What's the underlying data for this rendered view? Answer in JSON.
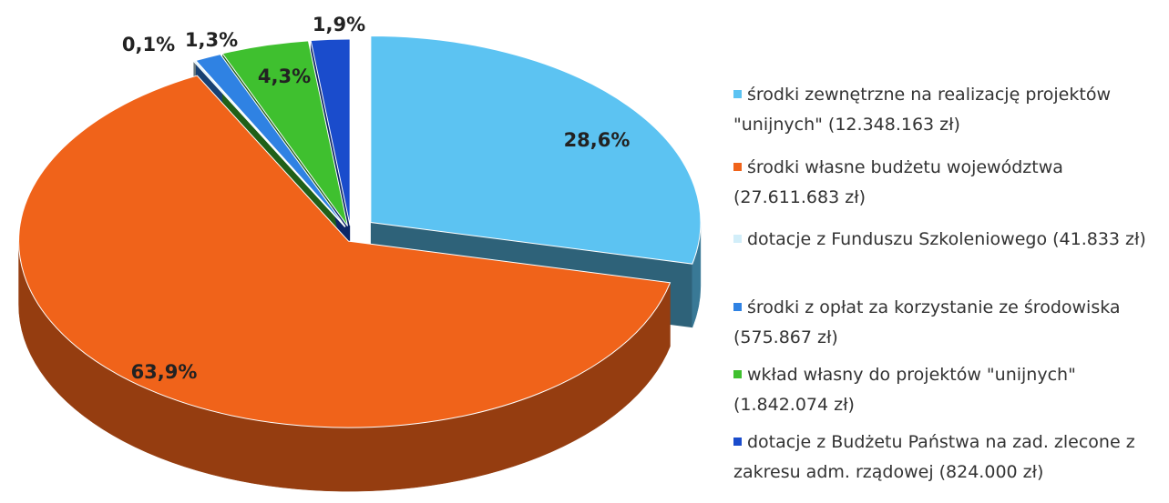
{
  "chart_data": {
    "type": "pie",
    "categories": [
      "środki zewnętrzne na realizację projektów \"unijnych\" (12.348.163 zł)",
      "środki własne budżetu województwa (27.611.683 zł)",
      "dotacje z Funduszu Szkoleniowego (41.833 zł)",
      "środki z opłat za korzystanie ze środowiska (575.867 zł)",
      "wkład własny do projektów \"unijnych\" (1.842.074 zł)",
      "dotacje z Budżetu Państwa na zad. zlecone z zakresu adm. rządowej (824.000 zł)"
    ],
    "values": [
      28.6,
      63.9,
      0.1,
      1.3,
      4.3,
      1.9
    ],
    "value_labels": [
      "28,6%",
      "63,9%",
      "0,1%",
      "1,3%",
      "4,3%",
      "1,9%"
    ],
    "colors": [
      "#5cc3f2",
      "#f0631a",
      "#d2eef9",
      "#2f82e3",
      "#3fc02f",
      "#1a4ccc"
    ],
    "legend": "right"
  }
}
